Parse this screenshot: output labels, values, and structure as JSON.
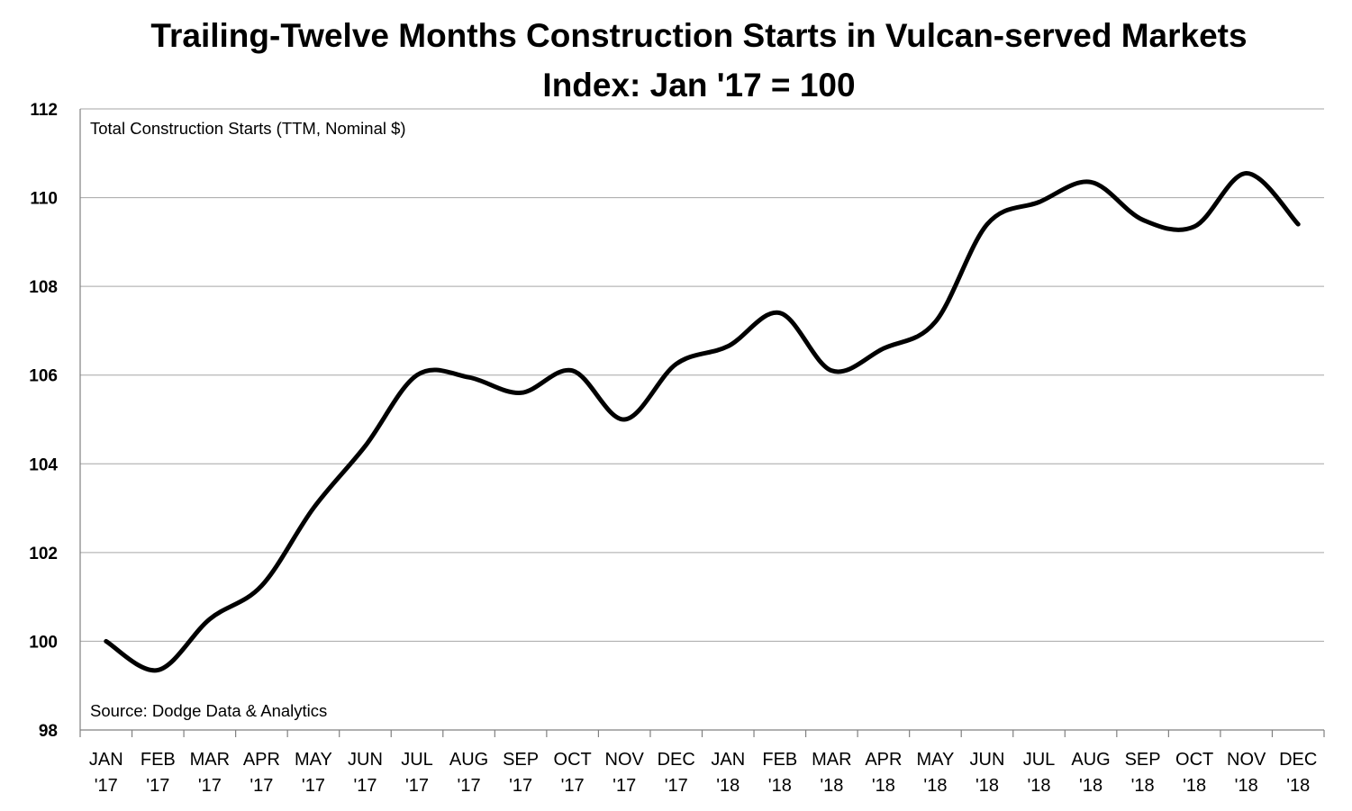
{
  "chart_data": {
    "type": "line",
    "title": "Trailing-Twelve Months Construction Starts in Vulcan-served Markets",
    "subtitle": "Index: Jan '17 = 100",
    "xlabel": "",
    "ylabel": "",
    "ylim": [
      98,
      112
    ],
    "yticks": [
      "98",
      "100",
      "102",
      "104",
      "106",
      "108",
      "110",
      "112"
    ],
    "grid": true,
    "categories": [
      {
        "month": "JAN",
        "year": "'17"
      },
      {
        "month": "FEB",
        "year": "'17"
      },
      {
        "month": "MAR",
        "year": "'17"
      },
      {
        "month": "APR",
        "year": "'17"
      },
      {
        "month": "MAY",
        "year": "'17"
      },
      {
        "month": "JUN",
        "year": "'17"
      },
      {
        "month": "JUL",
        "year": "'17"
      },
      {
        "month": "AUG",
        "year": "'17"
      },
      {
        "month": "SEP",
        "year": "'17"
      },
      {
        "month": "OCT",
        "year": "'17"
      },
      {
        "month": "NOV",
        "year": "'17"
      },
      {
        "month": "DEC",
        "year": "'17"
      },
      {
        "month": "JAN",
        "year": "'18"
      },
      {
        "month": "FEB",
        "year": "'18"
      },
      {
        "month": "MAR",
        "year": "'18"
      },
      {
        "month": "APR",
        "year": "'18"
      },
      {
        "month": "MAY",
        "year": "'18"
      },
      {
        "month": "JUN",
        "year": "'18"
      },
      {
        "month": "JUL",
        "year": "'18"
      },
      {
        "month": "AUG",
        "year": "'18"
      },
      {
        "month": "SEP",
        "year": "'18"
      },
      {
        "month": "OCT",
        "year": "'18"
      },
      {
        "month": "NOV",
        "year": "'18"
      },
      {
        "month": "DEC",
        "year": "'18"
      }
    ],
    "series": [
      {
        "name": "Total Construction Starts (TTM, Nominal $)",
        "color": "#000000",
        "values": [
          100.0,
          99.35,
          100.5,
          101.25,
          103.0,
          104.4,
          106.0,
          105.95,
          105.6,
          106.1,
          105.0,
          106.25,
          106.65,
          107.4,
          106.1,
          106.6,
          107.2,
          109.4,
          109.9,
          110.35,
          109.5,
          109.35,
          110.55,
          109.4
        ]
      }
    ],
    "annotations": {
      "series_label": "Total Construction Starts (TTM, Nominal $)",
      "source": "Source: Dodge Data & Analytics"
    }
  }
}
